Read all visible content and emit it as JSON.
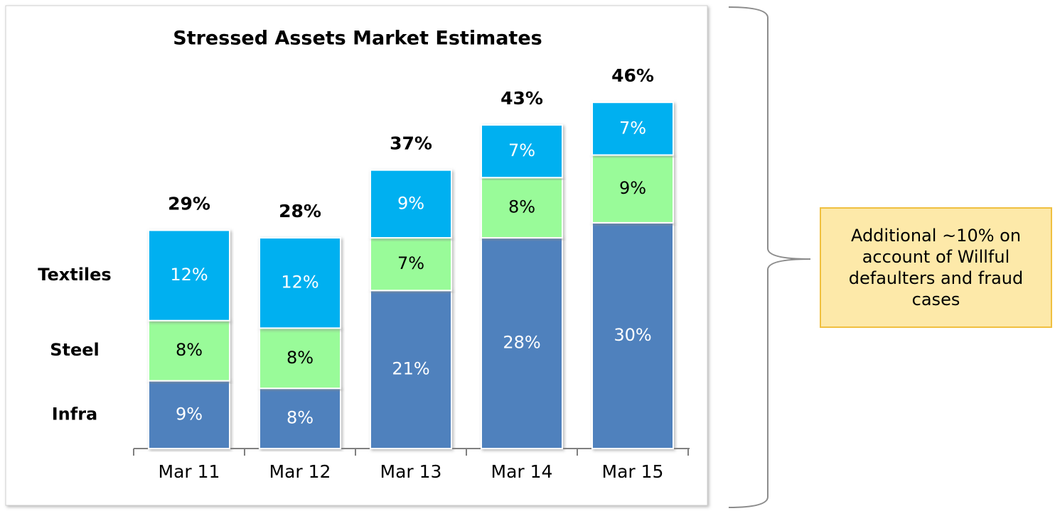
{
  "chart_data": {
    "type": "stacked_bar",
    "title": "Stressed Assets Market Estimates",
    "categories": [
      "Mar 11",
      "Mar 12",
      "Mar 13",
      "Mar 14",
      "Mar 15"
    ],
    "series": [
      {
        "name": "Infra",
        "color": "#4f81bd",
        "label_color": "#ffffff",
        "values": [
          9,
          8,
          21,
          28,
          30
        ],
        "value_labels": [
          "9%",
          "8%",
          "21%",
          "28%",
          "30%"
        ]
      },
      {
        "name": "Steel",
        "color": "#99fb99",
        "label_color": "#000000",
        "values": [
          8,
          8,
          7,
          8,
          9
        ],
        "value_labels": [
          "8%",
          "8%",
          "7%",
          "8%",
          "9%"
        ]
      },
      {
        "name": "Textiles",
        "color": "#00b0f0",
        "label_color": "#ffffff",
        "values": [
          12,
          12,
          9,
          7,
          7
        ],
        "value_labels": [
          "12%",
          "12%",
          "9%",
          "7%",
          "7%"
        ]
      }
    ],
    "totals": [
      29,
      28,
      37,
      43,
      46
    ],
    "total_labels": [
      "29%",
      "28%",
      "37%",
      "43%",
      "46%"
    ],
    "ylim": [
      0,
      48
    ],
    "annotation": "Additional ~10% on account of Willful defaulters and fraud cases"
  }
}
